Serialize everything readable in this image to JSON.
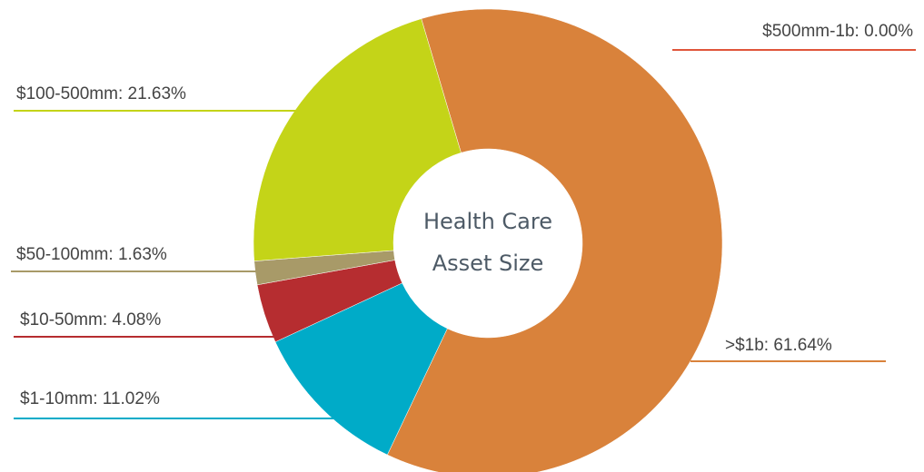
{
  "chart_data": {
    "type": "donut",
    "center_label": [
      "Health Care",
      "Asset Size"
    ],
    "values": [
      0.0,
      61.64,
      11.02,
      4.08,
      1.63,
      21.63
    ],
    "value_labels": [
      "$500mm-1b: 0.00%",
      ">$1b: 61.64%",
      "$1-10mm: 11.02%",
      "$10-50mm: 4.08%",
      "$50-100mm: 1.63%",
      "$100-500mm: 21.63%"
    ],
    "colors": [
      "#e0553a",
      "#d9823b",
      "#00abc8",
      "#b62d30",
      "#a89a68",
      "#c4d418"
    ]
  }
}
